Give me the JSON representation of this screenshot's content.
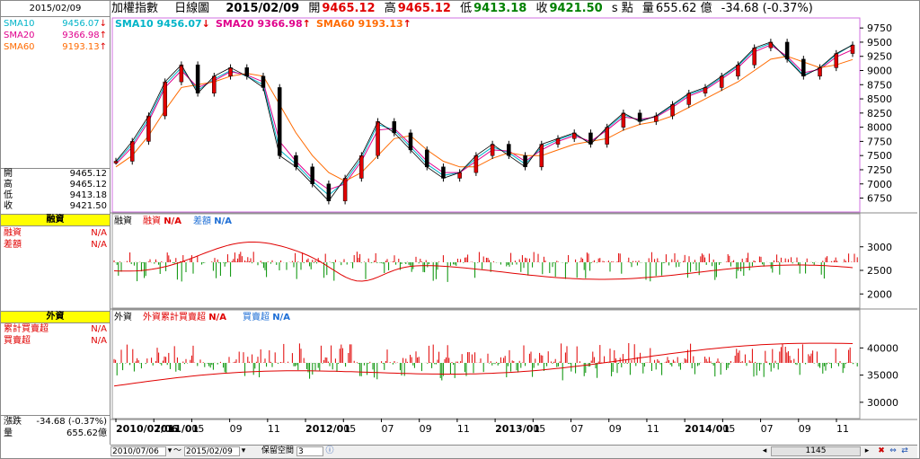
{
  "date_box": "2015/02/09",
  "sma_list": [
    {
      "label": "SMA10",
      "value": "9456.07",
      "arrow": "↓",
      "color": "#00b4c8"
    },
    {
      "label": "SMA20",
      "value": "9366.98",
      "arrow": "↑",
      "color": "#e0008c"
    },
    {
      "label": "SMA60",
      "value": "9193.13",
      "arrow": "↑",
      "color": "#ff6a00"
    }
  ],
  "ohlc": [
    {
      "label": "開",
      "value": "9465.12"
    },
    {
      "label": "高",
      "value": "9465.12"
    },
    {
      "label": "低",
      "value": "9413.18"
    },
    {
      "label": "收",
      "value": "9421.50"
    }
  ],
  "margin_panel": {
    "header": "融資",
    "rows": [
      {
        "label": "融資",
        "value": "N/A"
      },
      {
        "label": "差額",
        "value": "N/A"
      }
    ],
    "legend": [
      {
        "label": "融資",
        "color": "#000000"
      },
      {
        "label": "融資",
        "value": "N/A",
        "color": "#e00000"
      },
      {
        "label": "差額",
        "value": "N/A",
        "color": "#1f6fd6"
      }
    ],
    "y_ticks": [
      "3000",
      "2500",
      "2000"
    ]
  },
  "foreign_panel": {
    "header": "外資",
    "rows": [
      {
        "label": "累計買賣超",
        "value": "N/A"
      },
      {
        "label": "買賣超",
        "value": "N/A"
      }
    ],
    "legend": [
      {
        "label": "外資",
        "color": "#000000"
      },
      {
        "label": "外資累計買賣超",
        "value": "N/A",
        "color": "#e00000"
      },
      {
        "label": "買賣超",
        "value": "N/A",
        "color": "#1f6fd6"
      }
    ],
    "y_ticks": [
      "40000",
      "35000",
      "30000"
    ]
  },
  "bottom_left": [
    {
      "label": "漲跌",
      "value": "-34.68 (-0.37%)"
    },
    {
      "label": "量",
      "value": "655.62億"
    }
  ],
  "top_bar": {
    "index_name": "加權指數",
    "period": "日線圖",
    "date": "2015/02/09",
    "open_label": "開",
    "open": "9465.12",
    "high_label": "高",
    "high": "9465.12",
    "low_label": "低",
    "low": "9413.18",
    "close_label": "收",
    "close": "9421.50",
    "points_label": "s 點",
    "volume_label": "量",
    "volume": "655.62 億",
    "change": "-34.68 (-0.37%)"
  },
  "chart_legend": [
    {
      "label": "SMA10",
      "value": "9456.07",
      "arrow": "↓",
      "color": "#00b4c8"
    },
    {
      "label": "SMA20",
      "value": "9366.98",
      "arrow": "↑",
      "color": "#e0008c"
    },
    {
      "label": "SMA60",
      "value": "9193.13",
      "arrow": "↑",
      "color": "#ff6a00"
    }
  ],
  "chart_data": {
    "type": "line",
    "title": "加權指數 日線圖",
    "x_labels": [
      "2010/07/06",
      "2011/01",
      "05",
      "09",
      "11",
      "2012/01",
      "05",
      "07",
      "09",
      "11",
      "2013/01",
      "05",
      "07",
      "09",
      "11",
      "2014/01",
      "05",
      "07",
      "09",
      "11"
    ],
    "y_ticks": [
      "9750",
      "9500",
      "9250",
      "9000",
      "8750",
      "8500",
      "8250",
      "8000",
      "7750",
      "7500",
      "7250",
      "7000",
      "6750"
    ],
    "ylim": [
      6600,
      9800
    ],
    "series": [
      {
        "name": "加權指數",
        "values": [
          7400,
          7750,
          8200,
          8800,
          9100,
          8600,
          8900,
          9050,
          8900,
          8700,
          7500,
          7300,
          7000,
          6700,
          7100,
          7500,
          8100,
          7900,
          7600,
          7300,
          7100,
          7200,
          7500,
          7700,
          7500,
          7300,
          7700,
          7800,
          7900,
          7700,
          8000,
          8250,
          8100,
          8200,
          8400,
          8600,
          8700,
          8900,
          9100,
          9400,
          9500,
          9200,
          8900,
          9050,
          9300,
          9450
        ]
      },
      {
        "name": "SMA10",
        "values": [
          7380,
          7700,
          8150,
          8750,
          9050,
          8650,
          8850,
          9000,
          8900,
          8750,
          7600,
          7350,
          7050,
          6800,
          7050,
          7450,
          8050,
          7950,
          7650,
          7350,
          7150,
          7200,
          7450,
          7650,
          7550,
          7350,
          7650,
          7780,
          7880,
          7720,
          7980,
          8220,
          8120,
          8190,
          8380,
          8580,
          8680,
          8880,
          9080,
          9370,
          9480,
          9220,
          8920,
          9040,
          9280,
          9456
        ]
      },
      {
        "name": "SMA20",
        "values": [
          7350,
          7650,
          8100,
          8700,
          9000,
          8700,
          8820,
          8980,
          8920,
          8800,
          7750,
          7400,
          7100,
          6900,
          7000,
          7400,
          7950,
          7980,
          7700,
          7400,
          7200,
          7200,
          7400,
          7600,
          7580,
          7400,
          7600,
          7750,
          7850,
          7750,
          7950,
          8180,
          8140,
          8180,
          8350,
          8550,
          8660,
          8850,
          9050,
          9330,
          9450,
          9250,
          8960,
          9020,
          9240,
          9367
        ]
      },
      {
        "name": "SMA60",
        "values": [
          7300,
          7500,
          7850,
          8300,
          8700,
          8750,
          8800,
          8900,
          8950,
          8900,
          8400,
          7900,
          7500,
          7200,
          7050,
          7200,
          7500,
          7800,
          7850,
          7600,
          7400,
          7300,
          7300,
          7450,
          7550,
          7500,
          7500,
          7600,
          7700,
          7750,
          7800,
          7950,
          8050,
          8100,
          8200,
          8350,
          8500,
          8650,
          8800,
          9000,
          9200,
          9250,
          9150,
          9050,
          9100,
          9193
        ]
      }
    ]
  },
  "status": {
    "date_from": "2010/07/06",
    "tilde": "～",
    "date_to": "2015/02/09",
    "keep_space_label": "保留空間",
    "keep_space_value": "3",
    "count": "1145"
  }
}
